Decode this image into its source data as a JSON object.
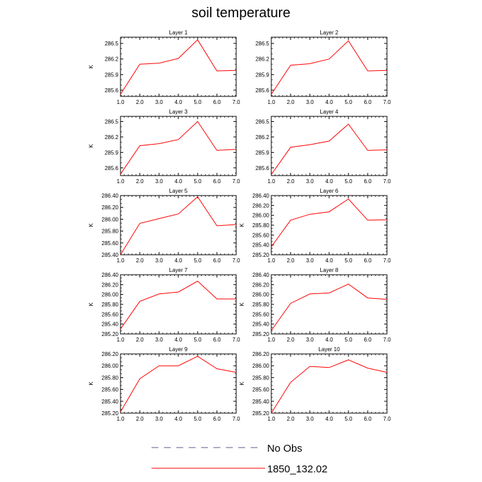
{
  "figure": {
    "title": "soil temperature",
    "legend": {
      "placement": "bottom-center",
      "entries": [
        {
          "name": "No Obs",
          "color": "#5a5a8c",
          "style": "dashed"
        },
        {
          "name": "1850_132.02",
          "color": "#ff0000",
          "style": "solid"
        }
      ]
    }
  },
  "chart_data": [
    {
      "type": "line",
      "title": "Layer 1",
      "ylabel": "K",
      "x": [
        1,
        2,
        3,
        4,
        5,
        6,
        7
      ],
      "xticks": [
        "1.0",
        "2.0",
        "3.0",
        "4.0",
        "5.0",
        "6.0",
        "7.0"
      ],
      "xlim": [
        1,
        7
      ],
      "ylim": [
        285.48,
        286.62
      ],
      "yticks": [
        285.6,
        285.9,
        286.2,
        286.5
      ],
      "ytick_labels": [
        "285.6",
        "285.9",
        "286.2",
        "286.5"
      ],
      "series": [
        {
          "name": "1850_132.02",
          "color": "#ff0000",
          "values": [
            285.52,
            286.1,
            286.12,
            286.21,
            286.57,
            285.97,
            285.98
          ]
        }
      ]
    },
    {
      "type": "line",
      "title": "Layer 2",
      "ylabel": "",
      "x": [
        1,
        2,
        3,
        4,
        5,
        6,
        7
      ],
      "xticks": [
        "1.0",
        "2.0",
        "3.0",
        "4.0",
        "5.0",
        "6.0",
        "7.0"
      ],
      "xlim": [
        1,
        7
      ],
      "ylim": [
        285.48,
        286.62
      ],
      "yticks": [
        285.6,
        285.9,
        286.2,
        286.5
      ],
      "ytick_labels": [
        "285.6",
        "285.9",
        "286.2",
        "286.5"
      ],
      "series": [
        {
          "name": "1850_132.02",
          "color": "#ff0000",
          "values": [
            285.52,
            286.08,
            286.11,
            286.2,
            286.55,
            285.97,
            285.98
          ]
        }
      ]
    },
    {
      "type": "line",
      "title": "Layer 3",
      "ylabel": "K",
      "x": [
        1,
        2,
        3,
        4,
        5,
        6,
        7
      ],
      "xticks": [
        "1.0",
        "2.0",
        "3.0",
        "4.0",
        "5.0",
        "6.0",
        "7.0"
      ],
      "xlim": [
        1,
        7
      ],
      "ylim": [
        285.45,
        286.6
      ],
      "yticks": [
        285.6,
        285.9,
        286.2,
        286.5
      ],
      "ytick_labels": [
        "285.6",
        "285.9",
        "286.2",
        "286.5"
      ],
      "series": [
        {
          "name": "1850_132.02",
          "color": "#ff0000",
          "values": [
            285.48,
            286.03,
            286.07,
            286.15,
            286.5,
            285.94,
            285.96
          ]
        }
      ]
    },
    {
      "type": "line",
      "title": "Layer 4",
      "ylabel": "",
      "x": [
        1,
        2,
        3,
        4,
        5,
        6,
        7
      ],
      "xticks": [
        "1.0",
        "2.0",
        "3.0",
        "4.0",
        "5.0",
        "6.0",
        "7.0"
      ],
      "xlim": [
        1,
        7
      ],
      "ylim": [
        285.45,
        286.6
      ],
      "yticks": [
        285.6,
        285.9,
        286.2,
        286.5
      ],
      "ytick_labels": [
        "285.6",
        "285.9",
        "286.2",
        "286.5"
      ],
      "series": [
        {
          "name": "1850_132.02",
          "color": "#ff0000",
          "values": [
            285.47,
            286.0,
            286.05,
            286.12,
            286.45,
            285.94,
            285.95
          ]
        }
      ]
    },
    {
      "type": "line",
      "title": "Layer 5",
      "ylabel": "K",
      "x": [
        1,
        2,
        3,
        4,
        5,
        6,
        7
      ],
      "xticks": [
        "1.0",
        "2.0",
        "3.0",
        "4.0",
        "5.0",
        "6.0",
        "7.0"
      ],
      "xlim": [
        1,
        7
      ],
      "ylim": [
        285.4,
        286.4
      ],
      "yticks": [
        285.4,
        285.6,
        285.8,
        286.0,
        286.2,
        286.4
      ],
      "ytick_labels": [
        "285.40",
        "285.60",
        "285.80",
        "286.00",
        "286.20",
        "286.40"
      ],
      "series": [
        {
          "name": "1850_132.02",
          "color": "#ff0000",
          "values": [
            285.4,
            285.93,
            286.01,
            286.09,
            286.38,
            285.89,
            285.91
          ]
        }
      ]
    },
    {
      "type": "line",
      "title": "Layer 6",
      "ylabel": "K",
      "x": [
        1,
        2,
        3,
        4,
        5,
        6,
        7
      ],
      "xticks": [
        "1.0",
        "2.0",
        "3.0",
        "4.0",
        "5.0",
        "6.0",
        "7.0"
      ],
      "xlim": [
        1,
        7
      ],
      "ylim": [
        285.2,
        286.4
      ],
      "yticks": [
        285.2,
        285.4,
        285.6,
        285.8,
        286.0,
        286.2,
        286.4
      ],
      "ytick_labels": [
        "285.20",
        "285.40",
        "285.60",
        "285.80",
        "286.00",
        "286.20",
        "286.40"
      ],
      "series": [
        {
          "name": "1850_132.02",
          "color": "#ff0000",
          "values": [
            285.36,
            285.9,
            286.02,
            286.07,
            286.33,
            285.9,
            285.91
          ]
        }
      ]
    },
    {
      "type": "line",
      "title": "Layer 7",
      "ylabel": "K",
      "x": [
        1,
        2,
        3,
        4,
        5,
        6,
        7
      ],
      "xticks": [
        "1.0",
        "2.0",
        "3.0",
        "4.0",
        "5.0",
        "6.0",
        "7.0"
      ],
      "xlim": [
        1,
        7
      ],
      "ylim": [
        285.2,
        286.4
      ],
      "yticks": [
        285.2,
        285.4,
        285.6,
        285.8,
        286.0,
        286.2,
        286.4
      ],
      "ytick_labels": [
        "285.20",
        "285.40",
        "285.60",
        "285.80",
        "286.00",
        "286.20",
        "286.40"
      ],
      "series": [
        {
          "name": "1850_132.02",
          "color": "#ff0000",
          "values": [
            285.3,
            285.86,
            286.01,
            286.05,
            286.27,
            285.91,
            285.91
          ]
        }
      ]
    },
    {
      "type": "line",
      "title": "Layer 8",
      "ylabel": "K",
      "x": [
        1,
        2,
        3,
        4,
        5,
        6,
        7
      ],
      "xticks": [
        "1.0",
        "2.0",
        "3.0",
        "4.0",
        "5.0",
        "6.0",
        "7.0"
      ],
      "xlim": [
        1,
        7
      ],
      "ylim": [
        285.2,
        286.4
      ],
      "yticks": [
        285.2,
        285.4,
        285.6,
        285.8,
        286.0,
        286.2,
        286.4
      ],
      "ytick_labels": [
        "285.20",
        "285.40",
        "285.60",
        "285.80",
        "286.00",
        "286.20",
        "286.40"
      ],
      "series": [
        {
          "name": "1850_132.02",
          "color": "#ff0000",
          "values": [
            285.27,
            285.82,
            286.01,
            286.03,
            286.21,
            285.93,
            285.9
          ]
        }
      ]
    },
    {
      "type": "line",
      "title": "Layer 9",
      "ylabel": "K",
      "x": [
        1,
        2,
        3,
        4,
        5,
        6,
        7
      ],
      "xticks": [
        "1.0",
        "2.0",
        "3.0",
        "4.0",
        "5.0",
        "6.0",
        "7.0"
      ],
      "xlim": [
        1,
        7
      ],
      "ylim": [
        285.2,
        286.2
      ],
      "yticks": [
        285.2,
        285.4,
        285.6,
        285.8,
        286.0,
        286.2
      ],
      "ytick_labels": [
        "285.20",
        "285.40",
        "285.60",
        "285.80",
        "286.00",
        "286.20"
      ],
      "series": [
        {
          "name": "1850_132.02",
          "color": "#ff0000",
          "values": [
            285.22,
            285.78,
            286.0,
            286.0,
            286.16,
            285.95,
            285.89
          ]
        }
      ]
    },
    {
      "type": "line",
      "title": "Layer 10",
      "ylabel": "K",
      "x": [
        1,
        2,
        3,
        4,
        5,
        6,
        7
      ],
      "xticks": [
        "1.0",
        "2.0",
        "3.0",
        "4.0",
        "5.0",
        "6.0",
        "7.0"
      ],
      "xlim": [
        1,
        7
      ],
      "ylim": [
        285.2,
        286.2
      ],
      "yticks": [
        285.2,
        285.4,
        285.6,
        285.8,
        286.0,
        286.2
      ],
      "ytick_labels": [
        "285.20",
        "285.40",
        "285.60",
        "285.80",
        "286.00",
        "286.20"
      ],
      "series": [
        {
          "name": "1850_132.02",
          "color": "#ff0000",
          "values": [
            285.2,
            285.72,
            285.99,
            285.97,
            286.1,
            285.96,
            285.89
          ]
        }
      ]
    }
  ]
}
